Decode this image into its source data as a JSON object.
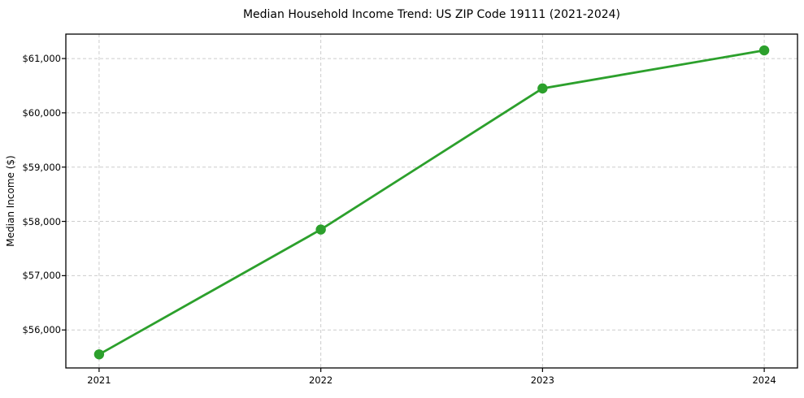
{
  "chart_data": {
    "type": "line",
    "title": "Median Household Income Trend: US ZIP Code 19111 (2021-2024)",
    "xlabel": "",
    "ylabel": "Median Income ($)",
    "x": [
      2021,
      2022,
      2023,
      2024
    ],
    "y": [
      55550,
      57850,
      60450,
      61150
    ],
    "xtick_labels": [
      "2021",
      "2022",
      "2023",
      "2024"
    ],
    "yticks": [
      56000,
      57000,
      58000,
      59000,
      60000,
      61000
    ],
    "ytick_labels": [
      "$56,000",
      "$57,000",
      "$58,000",
      "$59,000",
      "$60,000",
      "$61,000"
    ],
    "xlim": [
      2020.85,
      2024.15
    ],
    "ylim": [
      55300,
      61450
    ],
    "grid": true,
    "grid_style": "dashed",
    "legend": false,
    "line_color": "#2ca02c",
    "marker_color": "#2ca02c",
    "grid_color": "#cccccc",
    "spine_color": "#000000",
    "marker": "circle"
  }
}
